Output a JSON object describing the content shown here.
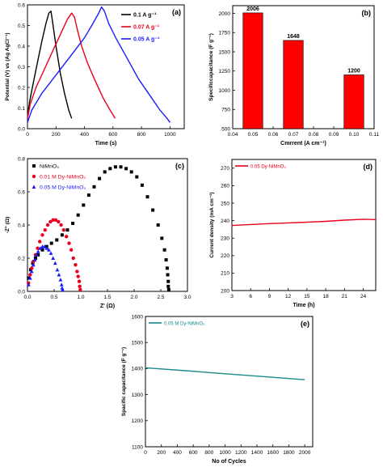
{
  "chart_data": [
    {
      "panel": "(a)",
      "type": "line",
      "xlabel": "Time (s)",
      "ylabel": "Potential (V) vs (Ag AgCl⁻¹)",
      "xlim": [
        0,
        1100
      ],
      "ylim": [
        0.0,
        0.6
      ],
      "xticks": [
        0,
        200,
        400,
        600,
        800,
        1000
      ],
      "yticks": [
        0.0,
        0.1,
        0.2,
        0.3,
        0.4,
        0.5,
        0.6
      ],
      "legend": "top-right",
      "series": [
        {
          "name": "0.1 A g⁻¹",
          "color": "#000000",
          "x": [
            0,
            15,
            40,
            70,
            100,
            130,
            150,
            165,
            180,
            200,
            230,
            260,
            290,
            310
          ],
          "y": [
            0.05,
            0.13,
            0.22,
            0.32,
            0.42,
            0.51,
            0.56,
            0.57,
            0.5,
            0.4,
            0.27,
            0.17,
            0.09,
            0.05
          ]
        },
        {
          "name": "0.07 A g⁻¹",
          "color": "#e8001c",
          "x": [
            0,
            20,
            60,
            120,
            180,
            240,
            280,
            310,
            330,
            350,
            380,
            420,
            470,
            530,
            580,
            615
          ],
          "y": [
            0.05,
            0.12,
            0.2,
            0.29,
            0.38,
            0.47,
            0.53,
            0.56,
            0.54,
            0.48,
            0.4,
            0.32,
            0.24,
            0.15,
            0.09,
            0.05
          ]
        },
        {
          "name": "0.05 A g⁻¹",
          "color": "#1a1aff",
          "x": [
            0,
            30,
            100,
            200,
            300,
            400,
            460,
            500,
            520,
            540,
            570,
            620,
            700,
            780,
            860,
            930,
            980,
            1000
          ],
          "y": [
            0.03,
            0.09,
            0.17,
            0.26,
            0.35,
            0.44,
            0.51,
            0.56,
            0.59,
            0.57,
            0.51,
            0.44,
            0.34,
            0.24,
            0.16,
            0.09,
            0.05,
            0.03
          ]
        }
      ]
    },
    {
      "panel": "(b)",
      "type": "bar",
      "xlabel": "Cmrrent (A cm⁻¹)",
      "ylabel": "Specificcapacitance (F g⁻¹)",
      "xlim": [
        0.04,
        0.11
      ],
      "ylim": [
        500,
        2100
      ],
      "xticks": [
        0.04,
        0.05,
        0.06,
        0.07,
        0.08,
        0.09,
        0.1,
        0.11
      ],
      "yticks": [
        500,
        750,
        1000,
        1250,
        1500,
        1750,
        2000
      ],
      "bar_color": "#ff0000",
      "x": [
        0.05,
        0.07,
        0.1
      ],
      "values": [
        2006,
        1648,
        1200
      ],
      "data_labels": [
        "2006",
        "1648",
        "1200"
      ]
    },
    {
      "panel": "(c)",
      "type": "scatter",
      "xlabel": "Z' (Ω)",
      "ylabel": "-Z'' (Ω)",
      "xlim": [
        0.0,
        3.0
      ],
      "ylim": [
        0.0,
        0.8
      ],
      "xticks": [
        0.0,
        0.5,
        1.0,
        1.5,
        2.0,
        2.5,
        3.0
      ],
      "yticks": [
        0.0,
        0.2,
        0.4,
        0.6,
        0.8
      ],
      "legend": "top-left",
      "series": [
        {
          "name": "NiMnO₃",
          "color": "#000000",
          "marker": "square",
          "x": [
            0.02,
            0.06,
            0.1,
            0.15,
            0.2,
            0.28,
            0.36,
            0.45,
            0.55,
            0.65,
            0.75,
            0.85,
            0.95,
            1.05,
            1.15,
            1.25,
            1.35,
            1.45,
            1.55,
            1.65,
            1.75,
            1.85,
            1.95,
            2.05,
            2.15,
            2.25,
            2.35,
            2.45,
            2.52,
            2.57,
            2.6,
            2.62,
            2.63,
            2.64,
            2.64,
            2.65
          ],
          "y": [
            0.08,
            0.13,
            0.17,
            0.2,
            0.22,
            0.25,
            0.27,
            0.29,
            0.31,
            0.34,
            0.37,
            0.41,
            0.46,
            0.52,
            0.58,
            0.63,
            0.68,
            0.72,
            0.74,
            0.75,
            0.75,
            0.74,
            0.72,
            0.69,
            0.64,
            0.57,
            0.49,
            0.4,
            0.32,
            0.25,
            0.19,
            0.14,
            0.1,
            0.06,
            0.03,
            0.01
          ]
        },
        {
          "name": "0.01 M Dy-NiMnO₃",
          "color": "#e8001c",
          "marker": "circle",
          "x": [
            0.02,
            0.05,
            0.08,
            0.11,
            0.15,
            0.19,
            0.23,
            0.28,
            0.33,
            0.38,
            0.43,
            0.48,
            0.53,
            0.58,
            0.63,
            0.68,
            0.73,
            0.78,
            0.82,
            0.86,
            0.9,
            0.93,
            0.95,
            0.97,
            0.98,
            0.99
          ],
          "y": [
            0.05,
            0.1,
            0.14,
            0.18,
            0.22,
            0.26,
            0.3,
            0.34,
            0.37,
            0.4,
            0.42,
            0.43,
            0.43,
            0.42,
            0.4,
            0.37,
            0.33,
            0.29,
            0.25,
            0.2,
            0.16,
            0.12,
            0.09,
            0.06,
            0.03,
            0.01
          ]
        },
        {
          "name": "0.05 M Dy-NiMnO₃",
          "color": "#1a1aff",
          "marker": "triangle",
          "x": [
            0.02,
            0.05,
            0.08,
            0.11,
            0.14,
            0.17,
            0.2,
            0.24,
            0.28,
            0.32,
            0.36,
            0.4,
            0.44,
            0.48,
            0.52,
            0.56,
            0.59,
            0.62,
            0.64,
            0.65,
            0.66
          ],
          "y": [
            0.04,
            0.08,
            0.12,
            0.16,
            0.19,
            0.22,
            0.24,
            0.26,
            0.27,
            0.27,
            0.26,
            0.25,
            0.23,
            0.2,
            0.17,
            0.13,
            0.1,
            0.07,
            0.04,
            0.02,
            0.01
          ]
        }
      ]
    },
    {
      "panel": "(d)",
      "type": "line",
      "xlabel": "Time (h)",
      "ylabel": "Current density (mA cm⁻²)",
      "xlim": [
        3,
        26
      ],
      "ylim": [
        200,
        275
      ],
      "xticks": [
        3,
        6,
        9,
        12,
        15,
        18,
        21,
        24
      ],
      "yticks": [
        200,
        210,
        220,
        230,
        240,
        250,
        260,
        270
      ],
      "legend": "top-left",
      "series": [
        {
          "name": "0.05 Dy-NiMnO₃",
          "color": "#e8001c",
          "x": [
            3,
            6,
            9,
            12,
            15,
            18,
            21,
            24,
            26
          ],
          "y": [
            237.2,
            237.8,
            238.3,
            238.7,
            239.1,
            239.6,
            240.3,
            240.8,
            240.6
          ]
        }
      ]
    },
    {
      "panel": "(e)",
      "type": "line",
      "xlabel": "No of Cycles",
      "ylabel": "Spacific capacitance (F g⁻¹)",
      "xlim": [
        0,
        2100
      ],
      "ylim": [
        1100,
        1600
      ],
      "xticks": [
        0,
        200,
        400,
        600,
        800,
        1000,
        1200,
        1400,
        1600,
        1800,
        2000
      ],
      "yticks": [
        1100,
        1200,
        1300,
        1400,
        1500,
        1600
      ],
      "legend": "top-left",
      "series": [
        {
          "name": "0.05 M Dy-NiMnO₃",
          "color": "#1a8a8a",
          "x": [
            0,
            500,
            1000,
            1500,
            2000
          ],
          "y": [
            1403,
            1392,
            1380,
            1369,
            1357
          ]
        }
      ]
    }
  ]
}
